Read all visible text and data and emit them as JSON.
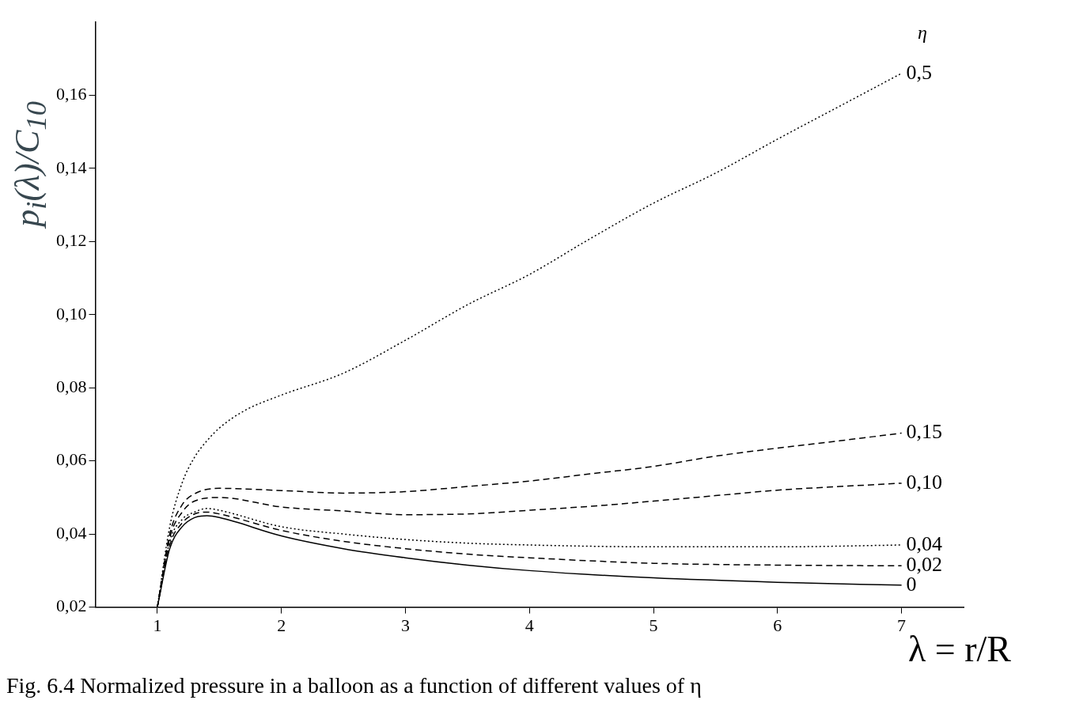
{
  "chart_data": {
    "type": "line",
    "xlabel": "λ = r/R",
    "ylabel": "p$_{i}$(λ)/C$_{10}$",
    "legend_title": "η",
    "annotations": [
      "Fig. 6.4  Normalized pressure in a balloon as a function of different values of η"
    ],
    "xlim": [
      0.5,
      7.5
    ],
    "xticks": [
      1,
      2,
      3,
      4,
      5,
      6,
      7
    ],
    "ylim": [
      0.02,
      0.18
    ],
    "yticks": [
      {
        "value": 0.02,
        "label": "0,02"
      },
      {
        "value": 0.04,
        "label": "0,04"
      },
      {
        "value": 0.06,
        "label": "0,06"
      },
      {
        "value": 0.08,
        "label": "0,08"
      },
      {
        "value": 0.1,
        "label": "0,10"
      },
      {
        "value": 0.12,
        "label": "0,12"
      },
      {
        "value": 0.14,
        "label": "0,14"
      },
      {
        "value": 0.16,
        "label": "0,16"
      }
    ],
    "grid": false,
    "legend": false,
    "marker": "none",
    "series": [
      {
        "name": "0,5",
        "color": "#000000",
        "line_style": "dotted",
        "x": [
          1,
          1.1,
          1.2,
          1.3,
          1.4,
          1.5,
          1.7,
          2,
          2.5,
          3,
          3.5,
          4,
          4.5,
          5,
          5.5,
          6,
          6.5,
          7
        ],
        "values": [
          0.02,
          0.042,
          0.054,
          0.061,
          0.0655,
          0.069,
          0.0737,
          0.078,
          0.084,
          0.093,
          0.1027,
          0.111,
          0.121,
          0.1305,
          0.1387,
          0.148,
          0.157,
          0.166
        ]
      },
      {
        "name": "0,15",
        "color": "#000000",
        "line_style": "dashed",
        "x": [
          1,
          1.1,
          1.2,
          1.3,
          1.5,
          2,
          2.5,
          3,
          3.5,
          4,
          4.5,
          5,
          5.5,
          6,
          6.5,
          7
        ],
        "values": [
          0.02,
          0.04,
          0.048,
          0.051,
          0.0525,
          0.0519,
          0.0512,
          0.0516,
          0.053,
          0.0545,
          0.0565,
          0.0585,
          0.0613,
          0.0635,
          0.0655,
          0.0676
        ]
      },
      {
        "name": "0,10",
        "color": "#000000",
        "line_style": "dashed",
        "x": [
          1,
          1.1,
          1.2,
          1.3,
          1.5,
          2,
          2.5,
          3,
          3.5,
          4,
          4.5,
          5,
          5.5,
          6,
          6.5,
          7
        ],
        "values": [
          0.02,
          0.039,
          0.046,
          0.049,
          0.05,
          0.0474,
          0.0463,
          0.0453,
          0.0455,
          0.0465,
          0.0476,
          0.049,
          0.0505,
          0.052,
          0.053,
          0.0539
        ]
      },
      {
        "name": "0,04",
        "color": "#000000",
        "line_style": "dotted",
        "x": [
          1,
          1.1,
          1.2,
          1.3,
          1.4,
          1.5,
          2,
          2.5,
          3,
          3.5,
          4,
          5,
          6,
          7
        ],
        "values": [
          0.02,
          0.038,
          0.044,
          0.046,
          0.047,
          0.0465,
          0.042,
          0.04,
          0.0385,
          0.0375,
          0.037,
          0.0365,
          0.0365,
          0.037
        ]
      },
      {
        "name": "0,02",
        "color": "#000000",
        "line_style": "dashed",
        "x": [
          1,
          1.1,
          1.2,
          1.3,
          1.4,
          1.5,
          2,
          2.5,
          3,
          3.5,
          4,
          5,
          6,
          7
        ],
        "values": [
          0.02,
          0.037,
          0.043,
          0.0455,
          0.046,
          0.0455,
          0.041,
          0.038,
          0.036,
          0.0345,
          0.0335,
          0.032,
          0.0315,
          0.0313
        ]
      },
      {
        "name": "0",
        "color": "#000000",
        "line_style": "solid",
        "x": [
          1,
          1.1,
          1.2,
          1.3,
          1.4,
          1.5,
          2,
          2.5,
          3,
          3.5,
          4,
          5,
          6,
          7
        ],
        "values": [
          0.02,
          0.036,
          0.042,
          0.0445,
          0.045,
          0.0445,
          0.0395,
          0.036,
          0.0335,
          0.0315,
          0.03,
          0.028,
          0.0268,
          0.026
        ]
      }
    ]
  }
}
